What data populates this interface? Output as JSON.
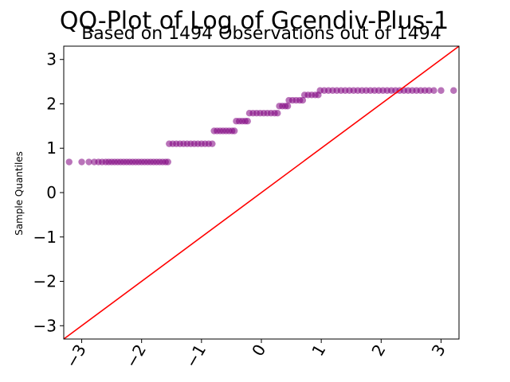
{
  "chart_data": {
    "type": "scatter",
    "title": "QQ-Plot of Log of Gcendiv-Plus-1",
    "subtitle": "Based on 1494 Observations out of 1494",
    "xlabel": "",
    "ylabel": "Sample Quantiles",
    "xlim": [
      -3.3,
      3.3
    ],
    "ylim": [
      -3.3,
      3.3
    ],
    "xticks": [
      -3,
      -2,
      -1,
      0,
      1,
      2,
      3
    ],
    "yticks": [
      -3,
      -2,
      -1,
      0,
      1,
      2,
      3
    ],
    "x_tick_labels": [
      "−3",
      "−2",
      "−1",
      "0",
      "1",
      "2",
      "3"
    ],
    "y_tick_labels": [
      "−3",
      "−2",
      "−1",
      "0",
      "1",
      "2",
      "3"
    ],
    "grid": false,
    "point_color": "#800080",
    "line_color": "#ff0000",
    "reference_line": {
      "slope": 1,
      "intercept": 0
    },
    "series": [
      {
        "points": [
          [
            -3.21,
            0.69
          ],
          [
            -3.0,
            0.69
          ],
          [
            -2.88,
            0.69
          ],
          [
            -2.79,
            0.69
          ],
          [
            -2.72,
            0.69
          ],
          [
            -2.66,
            0.69
          ],
          [
            -2.6,
            0.69
          ],
          [
            -2.55,
            0.69
          ],
          [
            -2.5,
            0.69
          ],
          [
            -2.45,
            0.69
          ],
          [
            -2.4,
            0.69
          ],
          [
            -2.35,
            0.69
          ],
          [
            -2.3,
            0.69
          ],
          [
            -2.25,
            0.69
          ],
          [
            -2.2,
            0.69
          ],
          [
            -2.15,
            0.69
          ],
          [
            -2.1,
            0.69
          ],
          [
            -2.05,
            0.69
          ],
          [
            -2.0,
            0.69
          ],
          [
            -1.95,
            0.69
          ],
          [
            -1.9,
            0.69
          ],
          [
            -1.85,
            0.69
          ],
          [
            -1.8,
            0.69
          ],
          [
            -1.75,
            0.69
          ],
          [
            -1.7,
            0.69
          ],
          [
            -1.65,
            0.69
          ],
          [
            -1.6,
            0.69
          ],
          [
            -1.56,
            0.69
          ],
          [
            -1.54,
            1.1
          ],
          [
            -1.48,
            1.1
          ],
          [
            -1.42,
            1.1
          ],
          [
            -1.36,
            1.1
          ],
          [
            -1.3,
            1.1
          ],
          [
            -1.24,
            1.1
          ],
          [
            -1.18,
            1.1
          ],
          [
            -1.12,
            1.1
          ],
          [
            -1.06,
            1.1
          ],
          [
            -1.0,
            1.1
          ],
          [
            -0.94,
            1.1
          ],
          [
            -0.88,
            1.1
          ],
          [
            -0.82,
            1.1
          ],
          [
            -0.79,
            1.39
          ],
          [
            -0.74,
            1.39
          ],
          [
            -0.69,
            1.39
          ],
          [
            -0.64,
            1.39
          ],
          [
            -0.59,
            1.39
          ],
          [
            -0.54,
            1.39
          ],
          [
            -0.49,
            1.39
          ],
          [
            -0.45,
            1.39
          ],
          [
            -0.42,
            1.61
          ],
          [
            -0.37,
            1.61
          ],
          [
            -0.32,
            1.61
          ],
          [
            -0.27,
            1.61
          ],
          [
            -0.23,
            1.61
          ],
          [
            -0.2,
            1.79
          ],
          [
            -0.14,
            1.79
          ],
          [
            -0.08,
            1.79
          ],
          [
            -0.02,
            1.79
          ],
          [
            0.04,
            1.79
          ],
          [
            0.1,
            1.79
          ],
          [
            0.16,
            1.79
          ],
          [
            0.22,
            1.79
          ],
          [
            0.27,
            1.79
          ],
          [
            0.3,
            1.95
          ],
          [
            0.35,
            1.95
          ],
          [
            0.4,
            1.95
          ],
          [
            0.44,
            1.95
          ],
          [
            0.46,
            2.08
          ],
          [
            0.52,
            2.08
          ],
          [
            0.58,
            2.08
          ],
          [
            0.64,
            2.08
          ],
          [
            0.69,
            2.08
          ],
          [
            0.72,
            2.2
          ],
          [
            0.78,
            2.2
          ],
          [
            0.84,
            2.2
          ],
          [
            0.9,
            2.2
          ],
          [
            0.95,
            2.2
          ],
          [
            0.98,
            2.3
          ],
          [
            1.05,
            2.3
          ],
          [
            1.12,
            2.3
          ],
          [
            1.19,
            2.3
          ],
          [
            1.26,
            2.3
          ],
          [
            1.33,
            2.3
          ],
          [
            1.4,
            2.3
          ],
          [
            1.47,
            2.3
          ],
          [
            1.54,
            2.3
          ],
          [
            1.61,
            2.3
          ],
          [
            1.68,
            2.3
          ],
          [
            1.75,
            2.3
          ],
          [
            1.82,
            2.3
          ],
          [
            1.89,
            2.3
          ],
          [
            1.96,
            2.3
          ],
          [
            2.03,
            2.3
          ],
          [
            2.1,
            2.3
          ],
          [
            2.17,
            2.3
          ],
          [
            2.24,
            2.3
          ],
          [
            2.31,
            2.3
          ],
          [
            2.38,
            2.3
          ],
          [
            2.45,
            2.3
          ],
          [
            2.52,
            2.3
          ],
          [
            2.59,
            2.3
          ],
          [
            2.66,
            2.3
          ],
          [
            2.73,
            2.3
          ],
          [
            2.8,
            2.3
          ],
          [
            2.88,
            2.3
          ],
          [
            3.0,
            2.3
          ],
          [
            3.21,
            2.3
          ]
        ]
      }
    ]
  }
}
